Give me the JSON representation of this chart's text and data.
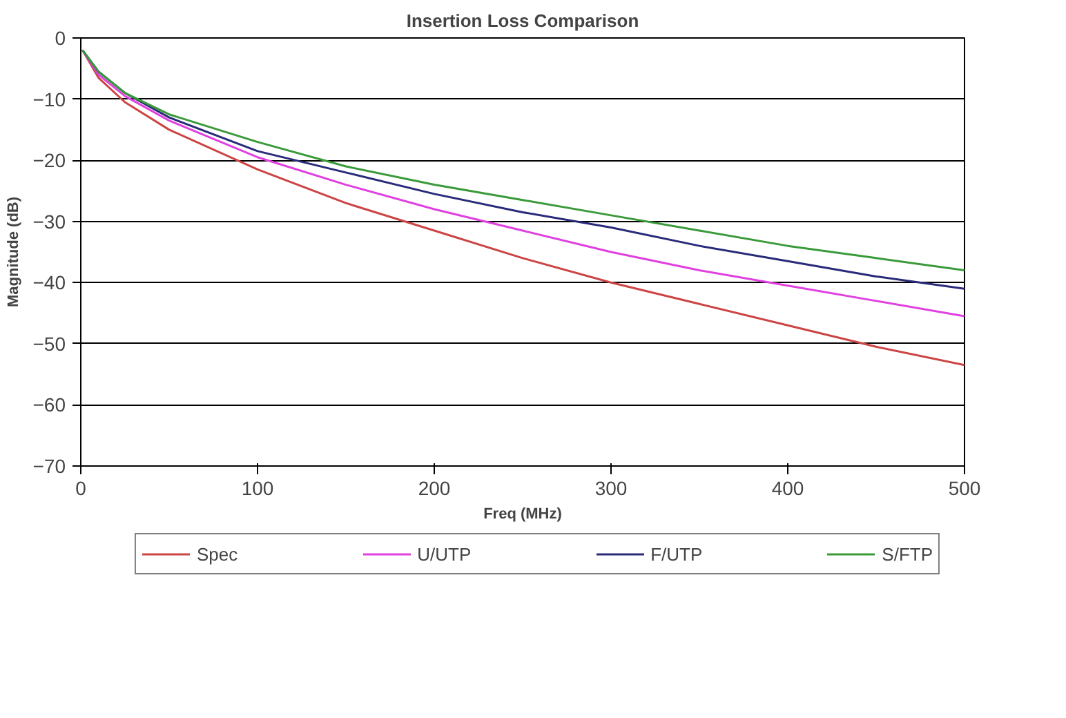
{
  "chart_data": {
    "type": "line",
    "title": "Insertion Loss Comparison",
    "xlabel": "Freq (MHz)",
    "ylabel": "Magnitude (dB)",
    "xlim": [
      0,
      500
    ],
    "xticks": [
      0,
      100,
      200,
      300,
      400,
      500
    ],
    "ylim": [
      -70,
      0
    ],
    "yticks": [
      -70,
      -60,
      -50,
      -40,
      -30,
      -20,
      -10,
      0
    ],
    "grid": "y",
    "legend": "bottom",
    "line_style": "solid",
    "marker": "none",
    "x": [
      1,
      10,
      25,
      50,
      100,
      150,
      200,
      250,
      300,
      350,
      400,
      450,
      500
    ],
    "series": [
      {
        "name": "Spec",
        "color": "#cc4444",
        "values": [
          -2,
          -6.5,
          -10.5,
          -15,
          -21.5,
          -27,
          -31.5,
          -36,
          -40,
          -43.5,
          -47,
          -50.5,
          -53.5
        ]
      },
      {
        "name": "U/UTP",
        "color": "#e040e0",
        "values": [
          -2,
          -6,
          -9.5,
          -13.5,
          -19.5,
          -24,
          -28,
          -31.5,
          -35,
          -38,
          -40.5,
          -43,
          -45.5
        ]
      },
      {
        "name": "F/UTP",
        "color": "#2a2a7a",
        "values": [
          -2,
          -5.5,
          -9,
          -13,
          -18.5,
          -22,
          -25.5,
          -28.5,
          -31,
          -34,
          -36.5,
          -39,
          -41
        ]
      },
      {
        "name": "S/FTP",
        "color": "#3a9a3a",
        "values": [
          -2,
          -5.5,
          -9,
          -12.5,
          -17,
          -21,
          -24,
          -26.5,
          -29,
          -31.5,
          -34,
          -36,
          -38
        ]
      }
    ]
  }
}
